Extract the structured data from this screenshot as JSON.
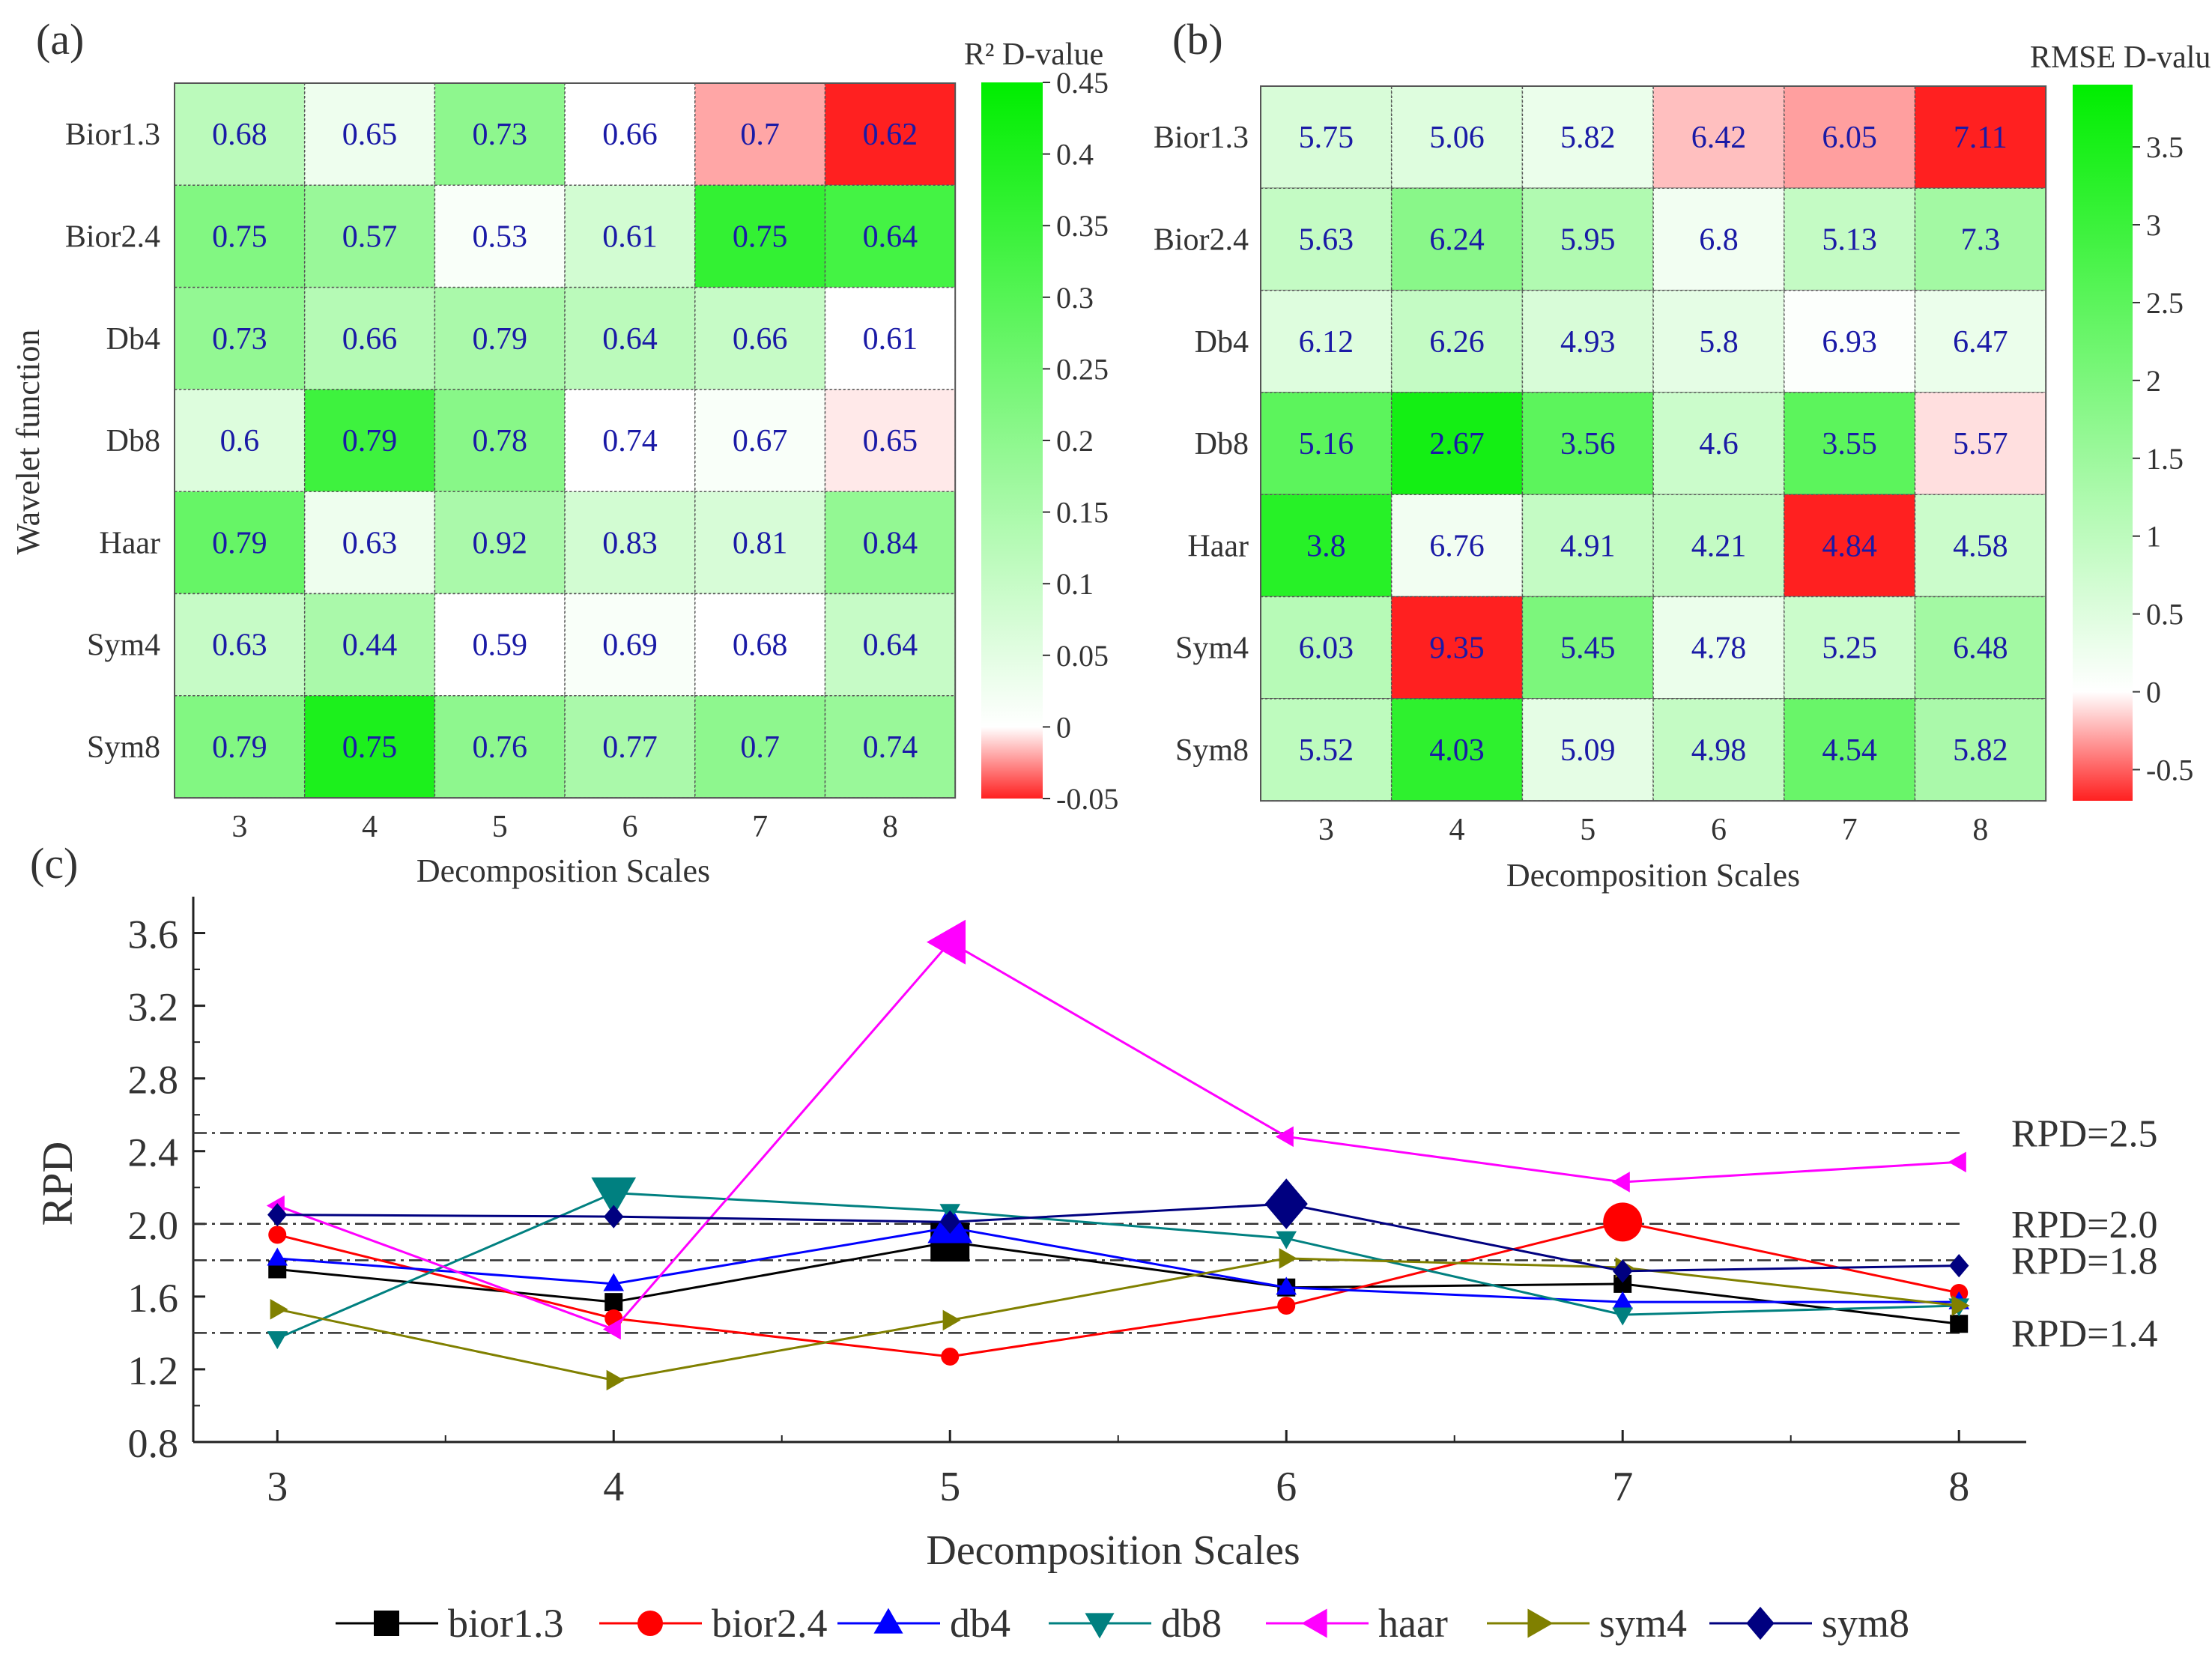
{
  "chart_data": [
    {
      "panel_label": "(a)",
      "type": "heatmap",
      "colorbar_title": "R² D-value",
      "colorbar_range": [
        -0.05,
        0.45
      ],
      "colorbar_ticks": [
        "0.45",
        "0.4",
        "0.35",
        "0.3",
        "0.25",
        "0.2",
        "0.15",
        "0.1",
        "0.05",
        "0",
        "-0.05"
      ],
      "ylabel": "Wavelet function",
      "xlabel": "Decomposition Scales",
      "x_categories": [
        "3",
        "4",
        "5",
        "6",
        "7",
        "8"
      ],
      "y_categories": [
        "Bior1.3",
        "Bior2.4",
        "Db4",
        "Db8",
        "Haar",
        "Sym4",
        "Sym8"
      ],
      "cell_labels": [
        [
          "0.68",
          "0.65",
          "0.73",
          "0.66",
          "0.7",
          "0.62"
        ],
        [
          "0.75",
          "0.57",
          "0.53",
          "0.61",
          "0.75",
          "0.64"
        ],
        [
          "0.73",
          "0.66",
          "0.79",
          "0.64",
          "0.66",
          "0.61"
        ],
        [
          "0.6",
          "0.79",
          "0.78",
          "0.74",
          "0.67",
          "0.65"
        ],
        [
          "0.79",
          "0.63",
          "0.92",
          "0.83",
          "0.81",
          "0.84"
        ],
        [
          "0.63",
          "0.44",
          "0.59",
          "0.69",
          "0.68",
          "0.64"
        ],
        [
          "0.79",
          "0.75",
          "0.76",
          "0.77",
          "0.7",
          "0.74"
        ]
      ],
      "color_values": [
        [
          0.12,
          0.03,
          0.2,
          0.0,
          -0.02,
          -0.05
        ],
        [
          0.22,
          0.18,
          0.01,
          0.08,
          0.36,
          0.33
        ],
        [
          0.19,
          0.13,
          0.15,
          0.12,
          0.1,
          0.0
        ],
        [
          0.06,
          0.34,
          0.21,
          0.0,
          0.01,
          -0.005
        ],
        [
          0.27,
          0.03,
          0.15,
          0.08,
          0.07,
          0.19
        ],
        [
          0.1,
          0.15,
          0.0,
          0.01,
          0.0,
          0.1
        ],
        [
          0.22,
          0.4,
          0.2,
          0.15,
          0.2,
          0.18
        ]
      ]
    },
    {
      "panel_label": "(b)",
      "type": "heatmap",
      "colorbar_title": "RMSE D-value",
      "colorbar_range": [
        -0.7,
        3.9
      ],
      "colorbar_ticks": [
        "3.5",
        "3",
        "2.5",
        "2",
        "1.5",
        "1",
        "0.5",
        "0",
        "-0.5"
      ],
      "xlabel": "Decomposition Scales",
      "x_categories": [
        "3",
        "4",
        "5",
        "6",
        "7",
        "8"
      ],
      "y_categories": [
        "Bior1.3",
        "Bior2.4",
        "Db4",
        "Db8",
        "Haar",
        "Sym4",
        "Sym8"
      ],
      "cell_labels": [
        [
          "5.75",
          "5.06",
          "5.82",
          "6.42",
          "6.05",
          "7.11"
        ],
        [
          "5.63",
          "6.24",
          "5.95",
          "6.8",
          "5.13",
          "7.3"
        ],
        [
          "6.12",
          "6.26",
          "4.93",
          "5.8",
          "6.93",
          "6.47"
        ],
        [
          "5.16",
          "2.67",
          "3.56",
          "4.6",
          "3.55",
          "5.57"
        ],
        [
          "3.8",
          "6.76",
          "4.91",
          "4.21",
          "4.84",
          "4.58"
        ],
        [
          "6.03",
          "9.35",
          "5.45",
          "4.78",
          "5.25",
          "6.48"
        ],
        [
          "5.52",
          "4.03",
          "5.09",
          "4.98",
          "4.54",
          "5.82"
        ]
      ],
      "color_values": [
        [
          0.6,
          0.5,
          0.3,
          -0.2,
          -0.3,
          -0.7
        ],
        [
          0.9,
          1.8,
          1.2,
          0.2,
          0.9,
          1.4
        ],
        [
          0.5,
          0.9,
          0.6,
          0.4,
          0.05,
          0.3
        ],
        [
          2.5,
          3.6,
          2.5,
          0.8,
          2.5,
          -0.1
        ],
        [
          3.3,
          0.2,
          0.9,
          0.9,
          -0.7,
          0.8
        ],
        [
          1.1,
          -0.7,
          2.0,
          0.3,
          0.8,
          1.4
        ],
        [
          1.0,
          3.2,
          0.4,
          0.9,
          2.3,
          1.3
        ]
      ]
    },
    {
      "panel_label": "(c)",
      "type": "line",
      "xlabel": "Decomposition Scales",
      "ylabel": "RPD",
      "x": [
        3,
        4,
        5,
        6,
        7,
        8
      ],
      "xlim": [
        2.75,
        8.2
      ],
      "ylim": [
        0.8,
        3.8
      ],
      "yticks": [
        "0.8",
        "1.2",
        "1.6",
        "2.0",
        "2.4",
        "2.8",
        "3.2",
        "3.6"
      ],
      "xticks": [
        "3",
        "4",
        "5",
        "6",
        "7",
        "8"
      ],
      "reference_lines": [
        {
          "y": 2.5,
          "label": "RPD=2.5"
        },
        {
          "y": 2.0,
          "label": "RPD=2.0"
        },
        {
          "y": 1.8,
          "label": "RPD=1.8"
        },
        {
          "y": 1.4,
          "label": "RPD=1.4"
        }
      ],
      "series": [
        {
          "name": "bior1.3",
          "color": "#000000",
          "marker": "square",
          "values": [
            1.75,
            1.57,
            1.9,
            1.65,
            1.67,
            1.45
          ],
          "highlight": 2
        },
        {
          "name": "bior2.4",
          "color": "#ff0000",
          "marker": "circle",
          "values": [
            1.94,
            1.48,
            1.27,
            1.55,
            2.01,
            1.62
          ],
          "highlight": 4
        },
        {
          "name": "db4",
          "color": "#0000ff",
          "marker": "triangle-up",
          "values": [
            1.81,
            1.67,
            1.98,
            1.65,
            1.57,
            1.57
          ],
          "highlight": 2
        },
        {
          "name": "db8",
          "color": "#008080",
          "marker": "triangle-down",
          "values": [
            1.37,
            2.17,
            2.07,
            1.92,
            1.5,
            1.55
          ],
          "highlight": 1
        },
        {
          "name": "haar",
          "color": "#ff00ff",
          "marker": "triangle-left",
          "values": [
            2.1,
            1.42,
            3.55,
            2.48,
            2.23,
            2.34
          ],
          "highlight": 2
        },
        {
          "name": "sym4",
          "color": "#808000",
          "marker": "triangle-right",
          "values": [
            1.53,
            1.14,
            1.47,
            1.81,
            1.76,
            1.55
          ],
          "highlight": -1
        },
        {
          "name": "sym8",
          "color": "#000080",
          "marker": "diamond",
          "values": [
            2.05,
            2.04,
            2.01,
            2.11,
            1.74,
            1.77
          ],
          "highlight": 3
        }
      ]
    }
  ]
}
